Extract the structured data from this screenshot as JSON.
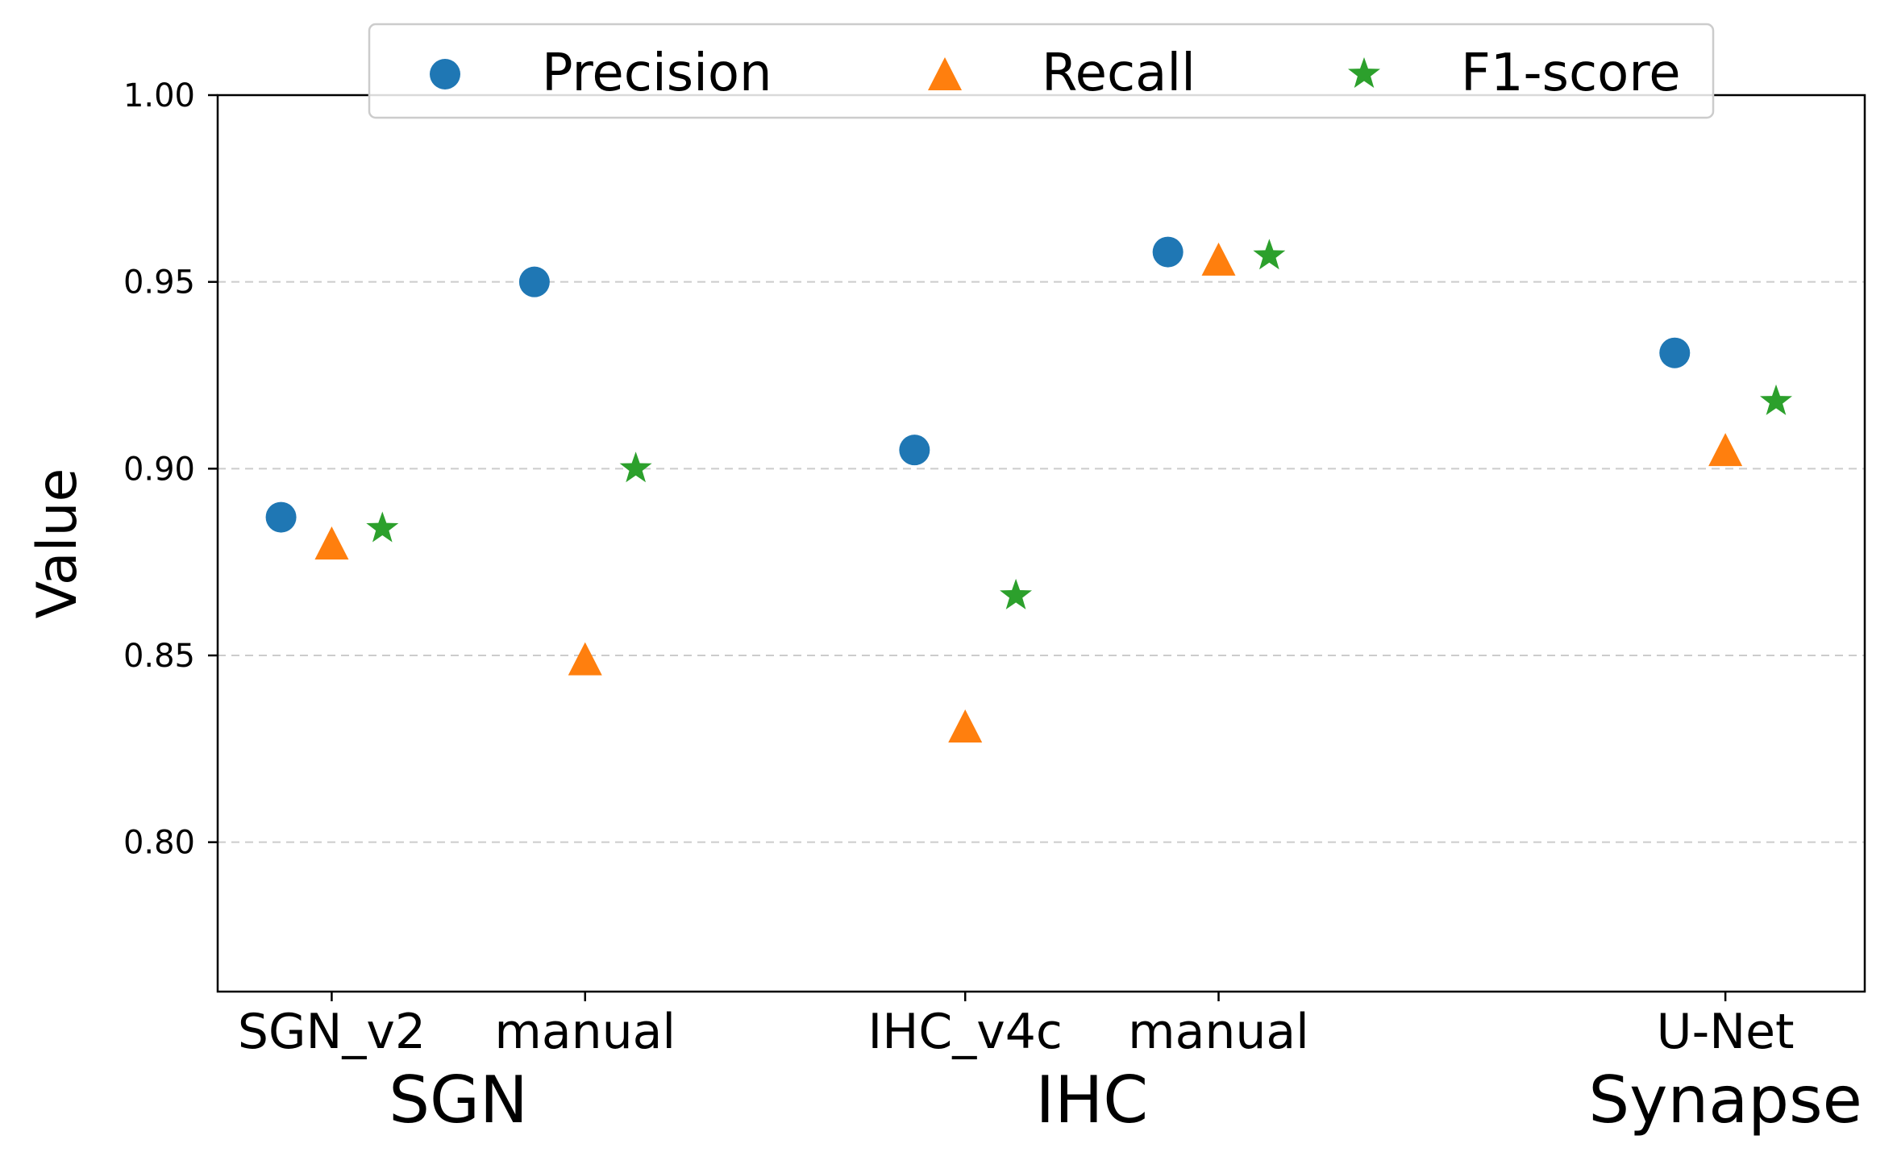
{
  "chart_data": {
    "type": "scatter",
    "title": "",
    "xlabel": "",
    "ylabel": "Value",
    "ylim": [
      0.76,
      1.0
    ],
    "yticks": [
      "0.80",
      "0.85",
      "0.90",
      "0.95",
      "1.00"
    ],
    "grid": "horizontal dashed",
    "legend_position": "top-center",
    "categories": [
      {
        "label": "SGN_v2",
        "group": "SGN",
        "x": 0
      },
      {
        "label": "manual",
        "group": "SGN",
        "x": 1
      },
      {
        "label": "IHC_v4c",
        "group": "IHC",
        "x": 2.5
      },
      {
        "label": "manual",
        "group": "IHC",
        "x": 3.5
      },
      {
        "label": "U-Net",
        "group": "Synapse",
        "x": 5.5
      }
    ],
    "groups": [
      {
        "label": "SGN",
        "center": 0.5
      },
      {
        "label": "IHC",
        "center": 3.0
      },
      {
        "label": "Synapse",
        "center": 5.5
      }
    ],
    "series": [
      {
        "name": "Precision",
        "marker": "circle",
        "color": "#1f77b4",
        "offset": -0.2,
        "values": [
          0.887,
          0.95,
          0.905,
          0.958,
          0.931
        ]
      },
      {
        "name": "Recall",
        "marker": "triangle",
        "color": "#ff7f0e",
        "offset": 0.0,
        "values": [
          0.88,
          0.849,
          0.831,
          0.956,
          0.905
        ]
      },
      {
        "name": "F1-score",
        "marker": "star",
        "color": "#2ca02c",
        "offset": 0.2,
        "values": [
          0.884,
          0.9,
          0.866,
          0.957,
          0.918
        ]
      }
    ]
  }
}
